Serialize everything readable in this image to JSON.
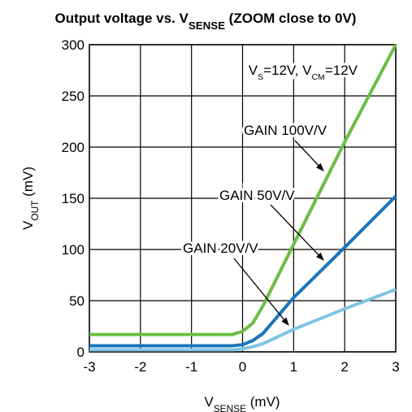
{
  "chart_data": {
    "type": "line",
    "title": [
      "Output voltage vs. V",
      "SENSE",
      " (ZOOM close to 0V)"
    ],
    "x_label": [
      "V",
      "SENSE",
      " (mV)"
    ],
    "y_label": [
      "V",
      "OUT",
      " (mV)"
    ],
    "conditions": [
      "V",
      "S",
      "=12V, V",
      "CM",
      "=12V"
    ],
    "x": [
      -3,
      -0.2,
      0,
      0.2,
      0.4,
      1,
      2,
      3
    ],
    "series": [
      {
        "name": "GAIN 100V/V",
        "color": "#6cbd45",
        "values": [
          17,
          17,
          20,
          28,
          45,
          105,
          205,
          300
        ]
      },
      {
        "name": "GAIN 50V/V",
        "color": "#1a75bb",
        "values": [
          6,
          6,
          7,
          11,
          18,
          53,
          102,
          152
        ]
      },
      {
        "name": "GAIN 20V/V",
        "color": "#80c4e2",
        "values": [
          2,
          2,
          3,
          5,
          8,
          22,
          42,
          61
        ]
      }
    ],
    "xlim": [
      -3,
      3
    ],
    "xticks": [
      -3,
      -2,
      -1,
      0,
      1,
      2,
      3
    ],
    "ylim": [
      0,
      300
    ],
    "yticks": [
      0,
      50,
      100,
      150,
      200,
      250,
      300
    ],
    "grid": true
  }
}
